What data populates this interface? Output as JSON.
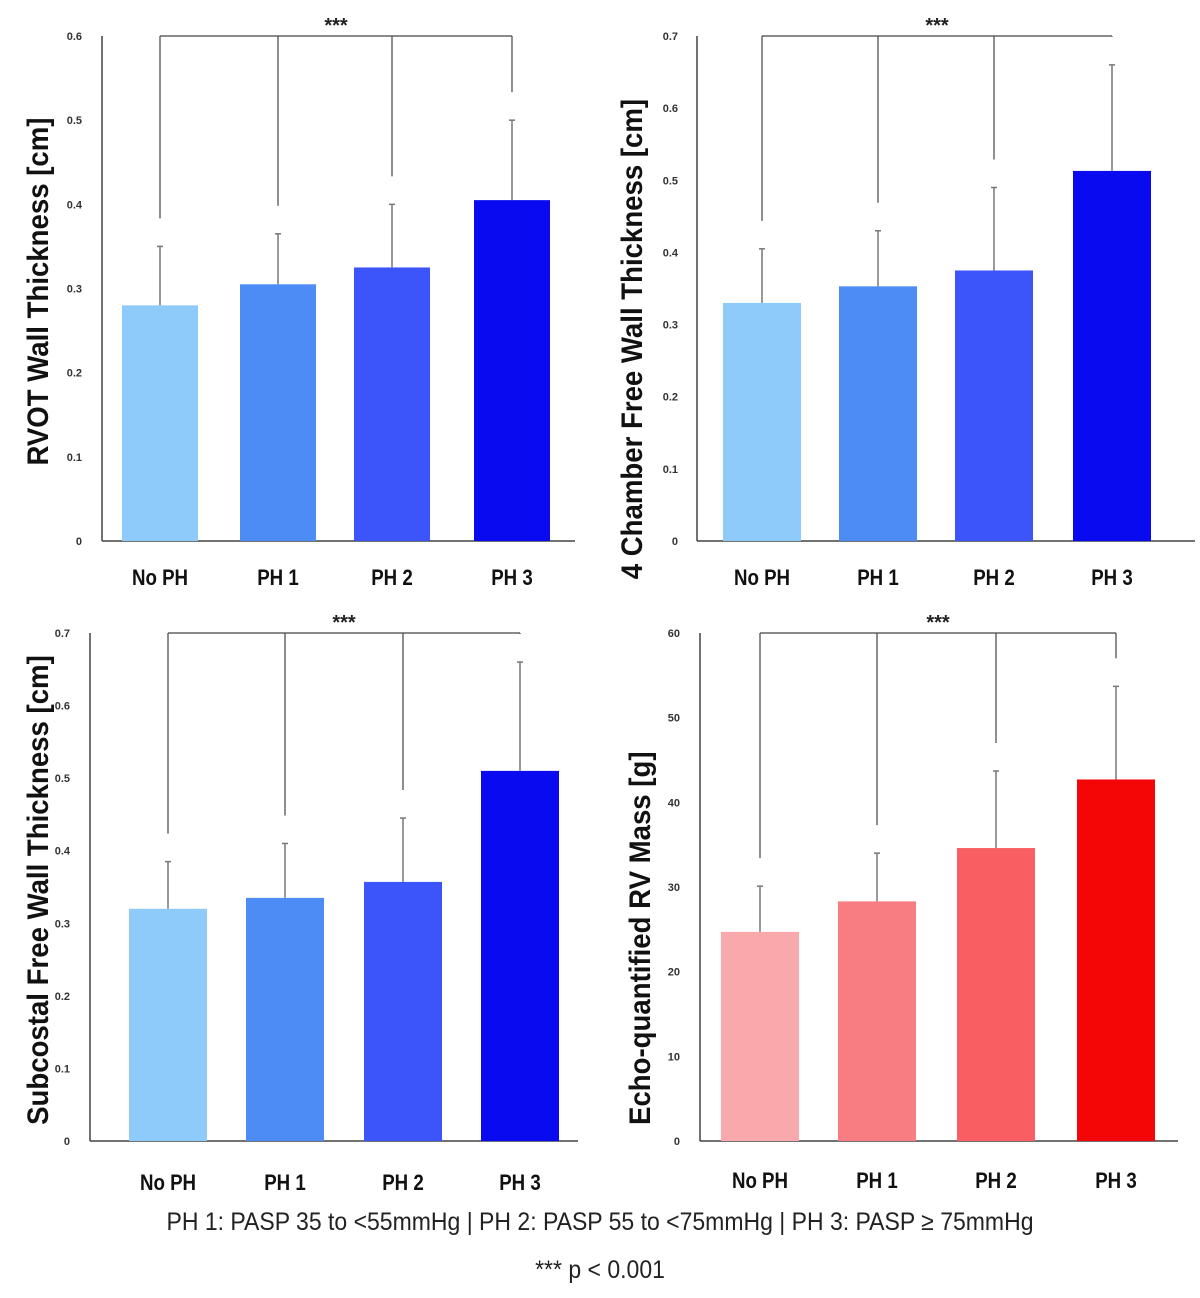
{
  "chart_data": [
    {
      "type": "bar",
      "title": "",
      "ylabel": "RVOT Wall Thickness [cm]",
      "xlabel": "",
      "categories": [
        "No PH",
        "PH 1",
        "PH 2",
        "PH 3"
      ],
      "values": [
        0.28,
        0.305,
        0.325,
        0.405
      ],
      "error_upper": [
        0.35,
        0.365,
        0.4,
        0.5
      ],
      "ylim": [
        0,
        0.6
      ],
      "yticks": [
        "0",
        "0.1",
        "0.2",
        "0.3",
        "0.4",
        "0.5",
        "0.6"
      ],
      "colors": [
        "#8ecbfb",
        "#4d8cf5",
        "#3b55fb",
        "#0a0af0"
      ],
      "significance": "***"
    },
    {
      "type": "bar",
      "title": "",
      "ylabel": "4 Chamber Free Wall Thickness [cm]",
      "xlabel": "",
      "categories": [
        "No PH",
        "PH 1",
        "PH 2",
        "PH 3"
      ],
      "values": [
        0.33,
        0.353,
        0.375,
        0.513
      ],
      "error_upper": [
        0.405,
        0.43,
        0.49,
        0.66
      ],
      "ylim": [
        0,
        0.7
      ],
      "yticks": [
        "0",
        "0.1",
        "0.2",
        "0.3",
        "0.4",
        "0.5",
        "0.6",
        "0.7"
      ],
      "colors": [
        "#8ecbfb",
        "#4d8cf5",
        "#3b55fb",
        "#0a0af0"
      ],
      "significance": "***"
    },
    {
      "type": "bar",
      "title": "",
      "ylabel": "Subcostal Free Wall Thickness [cm]",
      "xlabel": "",
      "categories": [
        "No PH",
        "PH 1",
        "PH 2",
        "PH 3"
      ],
      "values": [
        0.32,
        0.335,
        0.357,
        0.51
      ],
      "error_upper": [
        0.385,
        0.41,
        0.445,
        0.66
      ],
      "ylim": [
        0,
        0.7
      ],
      "yticks": [
        "0",
        "0.1",
        "0.2",
        "0.3",
        "0.4",
        "0.5",
        "0.6",
        "0.7"
      ],
      "colors": [
        "#8ecbfb",
        "#4d8cf5",
        "#3b55fb",
        "#0a0af0"
      ],
      "significance": "***"
    },
    {
      "type": "bar",
      "title": "",
      "ylabel": "Echo-quantified RV Mass [g]",
      "xlabel": "",
      "categories": [
        "No PH",
        "PH 1",
        "PH 2",
        "PH 3"
      ],
      "values": [
        24.7,
        28.3,
        34.6,
        42.7
      ],
      "error_upper": [
        30.1,
        34.0,
        43.7,
        53.7
      ],
      "ylim": [
        0,
        60
      ],
      "yticks": [
        "0",
        "10",
        "20",
        "30",
        "40",
        "50",
        "60"
      ],
      "colors": [
        "#f9a9ab",
        "#f87d82",
        "#f95e63",
        "#f50606"
      ],
      "significance": "***"
    }
  ],
  "footnote": {
    "definitions": "PH 1: PASP 35 to <55mmHg | PH 2: PASP 55 to <75mmHg | PH 3: PASP ≥ 75mmHg",
    "significance": "*** p < 0.001"
  }
}
